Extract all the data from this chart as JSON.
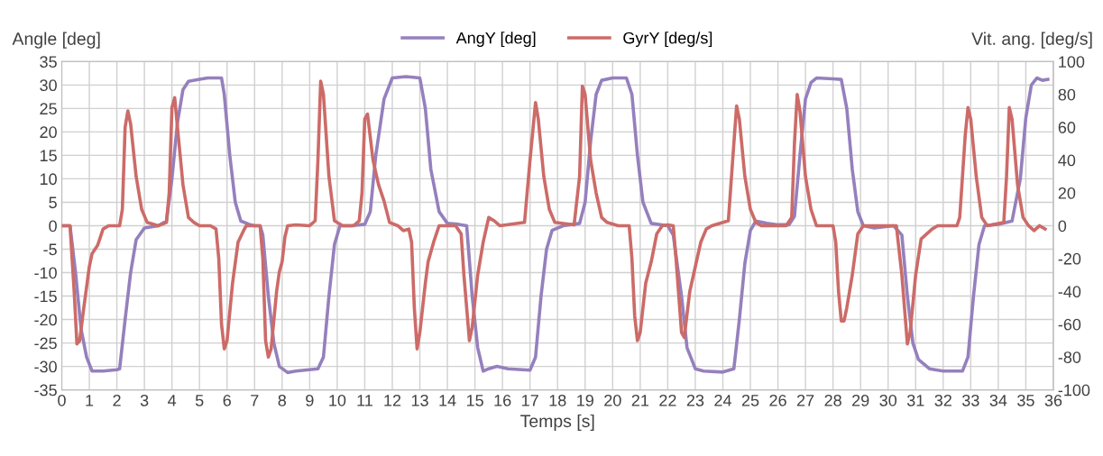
{
  "chart_data": {
    "type": "line",
    "xlabel": "Temps [s]",
    "ylabel": "Angle [deg]",
    "y2label": "Vit. ang. [deg/s]",
    "xlim": [
      0,
      36
    ],
    "xticks": [
      0,
      1,
      2,
      3,
      4,
      5,
      6,
      7,
      8,
      9,
      10,
      11,
      12,
      13,
      14,
      15,
      16,
      17,
      18,
      19,
      20,
      21,
      22,
      23,
      24,
      25,
      26,
      27,
      28,
      29,
      30,
      31,
      32,
      33,
      34,
      35,
      36
    ],
    "ylim": [
      -35,
      35
    ],
    "yticks": [
      -35,
      -30,
      -25,
      -20,
      -15,
      -10,
      -5,
      0,
      5,
      10,
      15,
      20,
      25,
      30,
      35
    ],
    "y2lim": [
      -100,
      100
    ],
    "y2ticks": [
      -100,
      -80,
      -60,
      -40,
      -20,
      0,
      20,
      40,
      60,
      80,
      100
    ],
    "grid": true,
    "legend": "top",
    "marker": "none",
    "line_style": "solid",
    "series": [
      {
        "name": "AngY [deg]",
        "color": "#9580bd",
        "axis": "y",
        "x": [
          0,
          0.3,
          0.5,
          0.7,
          0.9,
          1.1,
          1.5,
          2.0,
          2.1,
          2.3,
          2.5,
          2.7,
          3.0,
          3.5,
          3.8,
          4.0,
          4.2,
          4.4,
          4.6,
          5.0,
          5.3,
          5.8,
          5.9,
          6.1,
          6.3,
          6.5,
          6.8,
          7.0,
          7.2,
          7.3,
          7.5,
          7.7,
          7.9,
          8.2,
          8.5,
          9.3,
          9.5,
          9.7,
          9.9,
          10.1,
          10.5,
          11.0,
          11.2,
          11.4,
          11.7,
          12.0,
          12.5,
          13.0,
          13.2,
          13.4,
          13.7,
          14.0,
          14.4,
          14.7,
          14.9,
          15.1,
          15.3,
          15.5,
          15.8,
          16.2,
          17.0,
          17.2,
          17.4,
          17.6,
          17.8,
          18.2,
          18.8,
          19.0,
          19.2,
          19.4,
          19.6,
          20.0,
          20.5,
          20.7,
          20.9,
          21.1,
          21.4,
          22.0,
          22.2,
          22.5,
          22.7,
          23.0,
          23.3,
          24.0,
          24.4,
          24.6,
          24.8,
          25.0,
          25.2,
          25.6,
          26.0,
          26.4,
          26.6,
          26.8,
          27.0,
          27.2,
          27.4,
          28.0,
          28.3,
          28.5,
          28.7,
          28.9,
          29.1,
          29.5,
          30.2,
          30.5,
          30.7,
          30.9,
          31.1,
          31.5,
          32.0,
          32.7,
          32.9,
          33.1,
          33.3,
          33.5,
          34.0,
          34.5,
          34.8,
          35.0,
          35.2,
          35.4,
          35.6,
          35.8
        ],
        "values": [
          0,
          0,
          -10,
          -22,
          -28,
          -31,
          -31,
          -30.7,
          -30.5,
          -20,
          -10,
          -3,
          -0.5,
          0,
          1,
          10,
          22,
          29,
          30.8,
          31.2,
          31.5,
          31.5,
          28,
          15,
          5,
          1,
          0.3,
          0,
          0,
          -2,
          -15,
          -25,
          -30,
          -31.3,
          -31,
          -30.5,
          -28,
          -15,
          -4,
          0,
          0,
          0.3,
          3,
          15,
          27,
          31.5,
          31.8,
          31.5,
          25,
          12,
          3,
          0.5,
          0.3,
          0,
          -15,
          -26,
          -31,
          -30.5,
          -30,
          -30.5,
          -30.8,
          -28,
          -15,
          -5,
          -1,
          0,
          0.5,
          5,
          18,
          28,
          31,
          31.5,
          31.5,
          28,
          15,
          5,
          0.5,
          0,
          -2,
          -15,
          -26,
          -30.5,
          -31,
          -31.2,
          -30.5,
          -20,
          -8,
          -1,
          1,
          0.5,
          0.2,
          0.2,
          2,
          15,
          27,
          30.5,
          31.5,
          31.3,
          31.2,
          25,
          12,
          3,
          0,
          -0.5,
          0,
          -2,
          -15,
          -25,
          -28.5,
          -30.5,
          -31,
          -31,
          -28,
          -15,
          -4,
          0,
          0.3,
          1,
          10,
          23,
          30,
          31.5,
          31,
          31.2
        ]
      },
      {
        "name": "GyrY [deg/s]",
        "color": "#cc6b68",
        "axis": "y2",
        "x": [
          0,
          0.3,
          0.45,
          0.55,
          0.65,
          0.8,
          1.0,
          1.1,
          1.3,
          1.5,
          1.7,
          2.1,
          2.2,
          2.3,
          2.4,
          2.5,
          2.7,
          2.9,
          3.1,
          3.5,
          3.8,
          3.9,
          4.0,
          4.1,
          4.2,
          4.4,
          4.6,
          4.8,
          5.0,
          5.4,
          5.6,
          5.7,
          5.8,
          5.9,
          6.0,
          6.2,
          6.4,
          6.6,
          6.7,
          7.2,
          7.3,
          7.4,
          7.5,
          7.6,
          7.8,
          7.9,
          8.0,
          8.1,
          8.2,
          8.5,
          9.0,
          9.2,
          9.3,
          9.4,
          9.5,
          9.7,
          9.9,
          10.2,
          10.6,
          10.8,
          10.9,
          11.0,
          11.1,
          11.3,
          11.5,
          11.7,
          11.9,
          12.2,
          12.4,
          12.6,
          12.7,
          12.8,
          12.9,
          13.0,
          13.2,
          13.3,
          13.5,
          13.7,
          14.3,
          14.5,
          14.6,
          14.8,
          14.9,
          15.1,
          15.3,
          15.5,
          15.7,
          15.9,
          16.8,
          17.0,
          17.2,
          17.3,
          17.5,
          17.7,
          17.9,
          18.6,
          18.8,
          18.9,
          19.0,
          19.2,
          19.4,
          19.6,
          19.8,
          20.2,
          20.6,
          20.7,
          20.8,
          20.9,
          21.0,
          21.2,
          21.4,
          21.6,
          21.8,
          22.0,
          22.2,
          22.3,
          22.5,
          22.6,
          22.8,
          23.0,
          23.2,
          23.4,
          23.6,
          24.2,
          24.4,
          24.5,
          24.6,
          24.8,
          25.0,
          25.2,
          25.4,
          26.3,
          26.5,
          26.6,
          26.7,
          26.8,
          27.0,
          27.2,
          27.4,
          28.0,
          28.1,
          28.2,
          28.3,
          28.4,
          28.5,
          28.7,
          28.9,
          29.1,
          30.3,
          30.5,
          30.7,
          30.8,
          31.0,
          31.2,
          31.4,
          31.6,
          31.8,
          32.5,
          32.6,
          32.8,
          32.9,
          33.0,
          33.2,
          33.4,
          33.6,
          34.2,
          34.3,
          34.4,
          34.5,
          34.7,
          34.9,
          35.1,
          35.3,
          35.5,
          35.7
        ],
        "values": [
          0,
          0,
          -40,
          -72,
          -70,
          -50,
          -25,
          -17,
          -12,
          -2,
          0,
          0,
          10,
          60,
          70,
          62,
          30,
          10,
          2,
          0,
          2,
          20,
          72,
          78,
          60,
          25,
          5,
          2,
          0,
          0,
          -2,
          -20,
          -60,
          -75,
          -70,
          -35,
          -10,
          -3,
          0,
          0,
          -20,
          -70,
          -80,
          -75,
          -40,
          -28,
          -22,
          -7,
          0,
          0.5,
          0,
          3,
          40,
          88,
          80,
          30,
          3,
          0,
          0,
          3,
          20,
          65,
          68,
          40,
          25,
          15,
          2,
          0,
          -3,
          -2,
          -10,
          -50,
          -75,
          -65,
          -35,
          -22,
          -10,
          0,
          0,
          -5,
          -30,
          -70,
          -62,
          -30,
          -10,
          5,
          3,
          0,
          2,
          40,
          75,
          65,
          30,
          10,
          2,
          0.5,
          30,
          85,
          80,
          40,
          20,
          5,
          2,
          0,
          0,
          -20,
          -55,
          -70,
          -65,
          -35,
          -22,
          -5,
          0,
          0.5,
          0,
          -20,
          -65,
          -68,
          -40,
          -25,
          -10,
          -2,
          0,
          3,
          50,
          73,
          65,
          30,
          10,
          2,
          0,
          0,
          5,
          50,
          80,
          70,
          30,
          10,
          0,
          0,
          -10,
          -40,
          -58,
          -58,
          -50,
          -30,
          -5,
          0,
          0,
          -30,
          -72,
          -65,
          -30,
          -8,
          -5,
          -2,
          0,
          0,
          5,
          55,
          72,
          65,
          30,
          5,
          0,
          2,
          30,
          72,
          65,
          25,
          5,
          0,
          -3,
          0,
          -2
        ]
      }
    ]
  }
}
